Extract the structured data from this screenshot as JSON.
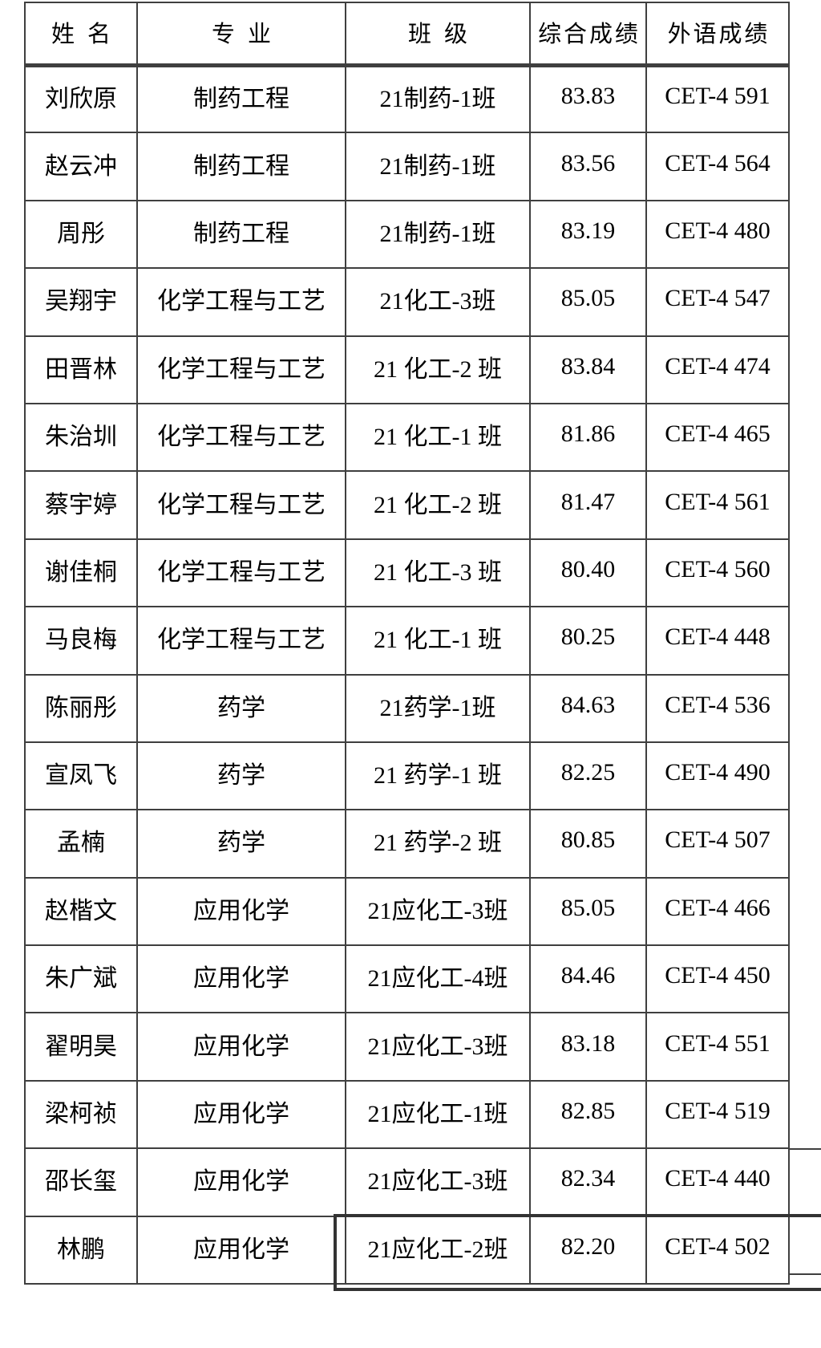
{
  "table": {
    "columns": [
      {
        "key": "name",
        "label": "姓名"
      },
      {
        "key": "major",
        "label": "专业"
      },
      {
        "key": "class",
        "label": "班级"
      },
      {
        "key": "score",
        "label": "综合成绩"
      },
      {
        "key": "cet",
        "label": "外语成绩"
      }
    ],
    "rows": [
      {
        "name": "刘欣原",
        "major": "制药工程",
        "class": "21制药-1班",
        "score": "83.83",
        "cet": "CET-4 591"
      },
      {
        "name": "赵云冲",
        "major": "制药工程",
        "class": "21制药-1班",
        "score": "83.56",
        "cet": "CET-4 564"
      },
      {
        "name": "周彤",
        "major": "制药工程",
        "class": "21制药-1班",
        "score": "83.19",
        "cet": "CET-4 480"
      },
      {
        "name": "吴翔宇",
        "major": "化学工程与工艺",
        "class": "21化工-3班",
        "score": "85.05",
        "cet": "CET-4 547"
      },
      {
        "name": "田晋林",
        "major": "化学工程与工艺",
        "class": "21 化工-2 班",
        "score": "83.84",
        "cet": "CET-4 474"
      },
      {
        "name": "朱治圳",
        "major": "化学工程与工艺",
        "class": "21 化工-1 班",
        "score": "81.86",
        "cet": "CET-4 465"
      },
      {
        "name": "蔡宇婷",
        "major": "化学工程与工艺",
        "class": "21 化工-2 班",
        "score": "81.47",
        "cet": "CET-4 561"
      },
      {
        "name": "谢佳桐",
        "major": "化学工程与工艺",
        "class": "21 化工-3 班",
        "score": "80.40",
        "cet": "CET-4 560"
      },
      {
        "name": "马良梅",
        "major": "化学工程与工艺",
        "class": "21 化工-1 班",
        "score": "80.25",
        "cet": "CET-4 448"
      },
      {
        "name": "陈丽彤",
        "major": "药学",
        "class": "21药学-1班",
        "score": "84.63",
        "cet": "CET-4 536"
      },
      {
        "name": "宣凤飞",
        "major": "药学",
        "class": "21 药学-1 班",
        "score": "82.25",
        "cet": "CET-4 490"
      },
      {
        "name": "孟楠",
        "major": "药学",
        "class": "21 药学-2 班",
        "score": "80.85",
        "cet": "CET-4 507"
      },
      {
        "name": "赵楷文",
        "major": "应用化学",
        "class": "21应化工-3班",
        "score": "85.05",
        "cet": "CET-4 466"
      },
      {
        "name": "朱广斌",
        "major": "应用化学",
        "class": "21应化工-4班",
        "score": "84.46",
        "cet": "CET-4 450"
      },
      {
        "name": "翟明昊",
        "major": "应用化学",
        "class": "21应化工-3班",
        "score": "83.18",
        "cet": "CET-4 551"
      },
      {
        "name": "梁柯祯",
        "major": "应用化学",
        "class": "21应化工-1班",
        "score": "82.85",
        "cet": "CET-4 519"
      },
      {
        "name": "邵长玺",
        "major": "应用化学",
        "class": "21应化工-3班",
        "score": "82.34",
        "cet": "CET-4 440"
      },
      {
        "name": "林鹏",
        "major": "应用化学",
        "class": "21应化工-2班",
        "score": "82.20",
        "cet": "CET-4 502"
      }
    ]
  }
}
